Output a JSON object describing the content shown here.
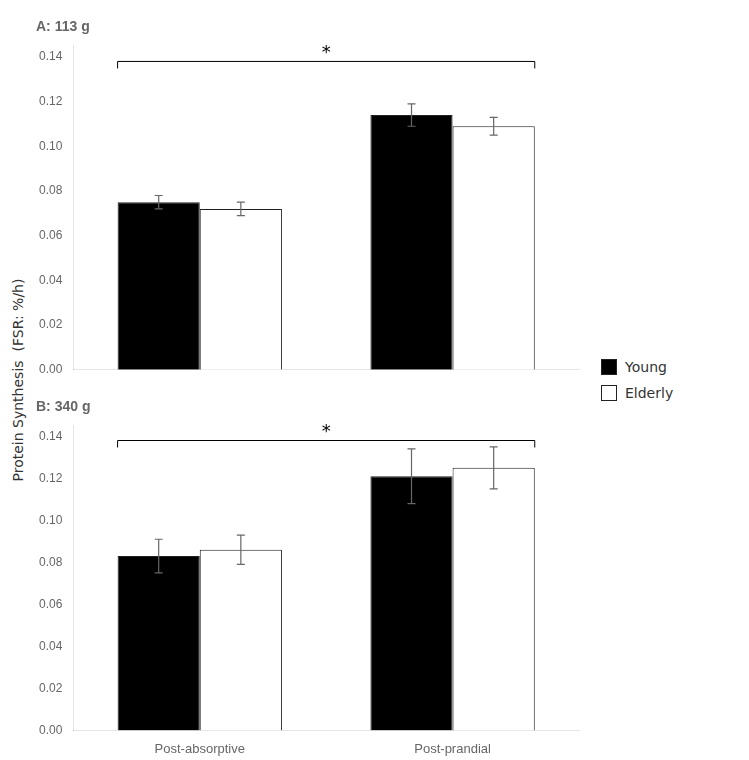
{
  "chart_data": [
    {
      "type": "bar",
      "title": "A: 113 g",
      "ylabel": "Protein Synthesis  (FSR: %/h)",
      "categories": [
        "Post-absorptive",
        "Post-prandial"
      ],
      "series": [
        {
          "name": "Young",
          "color": "#000000",
          "values": [
            0.075,
            0.114
          ],
          "errors": [
            0.003,
            0.005
          ]
        },
        {
          "name": "Elderly",
          "color": "#ffffff",
          "values": [
            0.072,
            0.109
          ],
          "errors": [
            0.003,
            0.004
          ]
        }
      ],
      "ylim": [
        0.0,
        0.145
      ],
      "yticks": [
        {
          "value": 0.0,
          "label": "0.00"
        },
        0.02,
        0.04,
        0.06,
        0.08,
        {
          "value": 0.1,
          "label": "0.10"
        },
        0.12,
        0.14
      ],
      "annotations": [
        {
          "text": "*",
          "y": 0.138
        }
      ],
      "grid": false,
      "legend": "right",
      "tick_labels": "y"
    },
    {
      "type": "bar",
      "title": "B: 340 g",
      "categories": [
        "Post-absorptive",
        "Post-prandial"
      ],
      "series": [
        {
          "name": "Young",
          "color": "#000000",
          "values": [
            0.083,
            0.121
          ],
          "errors": [
            0.008,
            0.013
          ]
        },
        {
          "name": "Elderly",
          "color": "#ffffff",
          "values": [
            0.086,
            0.125
          ],
          "errors": [
            0.007,
            0.01
          ]
        }
      ],
      "ylim": [
        0.0,
        0.145
      ],
      "yticks": [
        {
          "value": 0.0,
          "label": "0.00"
        },
        0.02,
        0.04,
        0.06,
        0.08,
        {
          "value": 0.1,
          "label": "0.10"
        },
        0.12,
        0.14
      ],
      "annotations": [
        {
          "text": "*",
          "y": 0.138
        }
      ],
      "grid": false
    }
  ]
}
